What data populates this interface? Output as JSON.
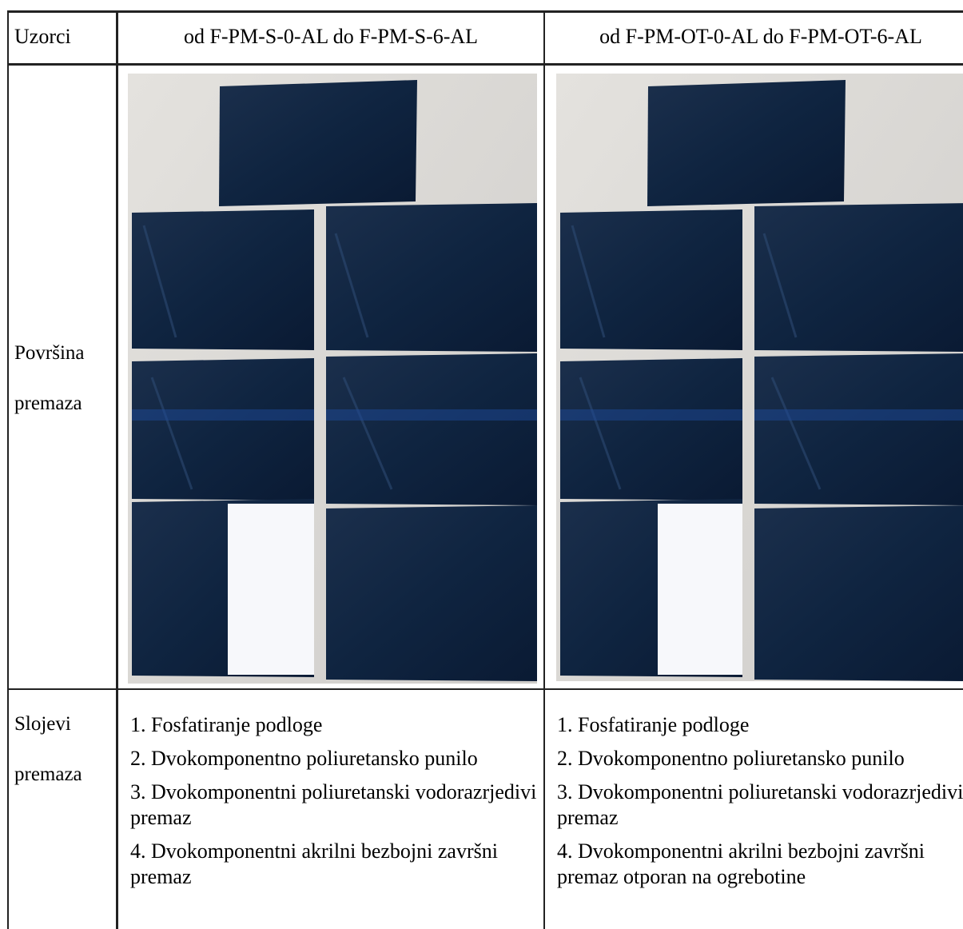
{
  "table": {
    "header": [
      "Uzorci",
      "od F-PM-S-0-AL do F-PM-S-6-AL",
      "od F-PM-OT-0-AL do F-PM-OT-6-AL"
    ],
    "rows": [
      {
        "label": "Površina premaza"
      },
      {
        "label": "Slojevi premaza",
        "cells": [
          [
            "1. Fosfatiranje podloge",
            "2. Dvokomponentno poliuretansko punilo",
            "3. Dvokomponentni poliuretanski vodorazrjedivi premaz",
            "4. Dvokomponentni akrilni bezbojni završni premaz"
          ],
          [
            "1. Fosfatiranje podloge",
            "2. Dvokomponentno poliuretansko punilo",
            "3. Dvokomponentni poliuretanski vodorazrjedivi premaz",
            "4. Dvokomponentni akrilni bezbojni završni premaz otporan na ogrebotine"
          ]
        ]
      }
    ]
  }
}
